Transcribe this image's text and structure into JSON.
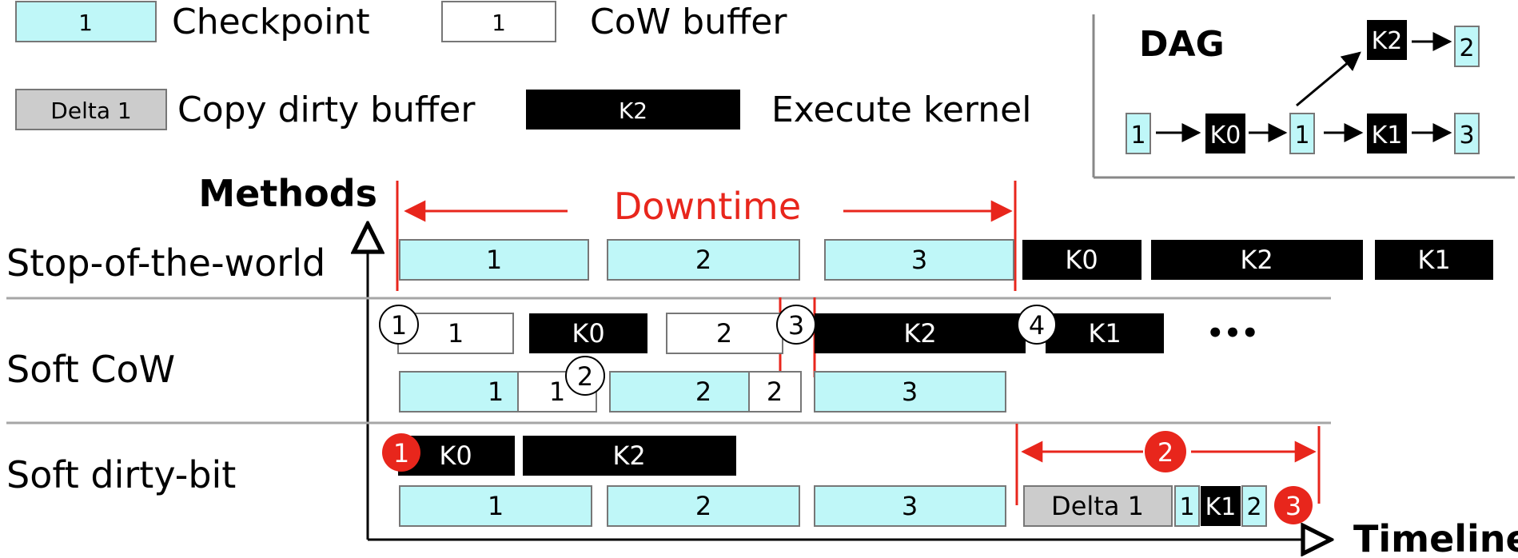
{
  "legend": {
    "checkpoint_num": "1",
    "checkpoint": "Checkpoint",
    "cow_num": "1",
    "cow": "CoW buffer",
    "delta_num": "Delta 1",
    "delta": "Copy dirty buffer",
    "kernel_num": "K2",
    "kernel": "Execute kernel"
  },
  "dag": {
    "title": "DAG",
    "nodes": {
      "n1": "1",
      "k0": "K0",
      "n1b": "1",
      "k1": "K1",
      "n3": "3",
      "k2": "K2",
      "n2": "2"
    }
  },
  "axes": {
    "y_label": "Methods",
    "x_label": "Timeline"
  },
  "downtime_label": "Downtime",
  "rows": {
    "stw": {
      "label": "Stop-of-the-world",
      "blocks": [
        "1",
        "2",
        "3"
      ],
      "kernels": [
        "K0",
        "K2",
        "K1"
      ]
    },
    "cow": {
      "label": "Soft CoW",
      "top": [
        "1",
        "K0",
        "2",
        "K2",
        "K1"
      ],
      "bottom": [
        "1",
        "1",
        "2",
        "2",
        "3"
      ],
      "markers": [
        "1",
        "2",
        "3",
        "4"
      ],
      "ellipsis": "•••"
    },
    "dirty": {
      "label": "Soft dirty-bit",
      "top": [
        "K0",
        "K2"
      ],
      "bottom": [
        "1",
        "2",
        "3",
        "Delta 1",
        "1",
        "K1",
        "2"
      ],
      "markers": [
        "1",
        "2",
        "3"
      ]
    }
  },
  "colors": {
    "checkpoint": "#bff7f8",
    "kernel": "#000000",
    "delta": "#cccccc",
    "red": "#e8261c",
    "grid": "#a6a6a6"
  }
}
